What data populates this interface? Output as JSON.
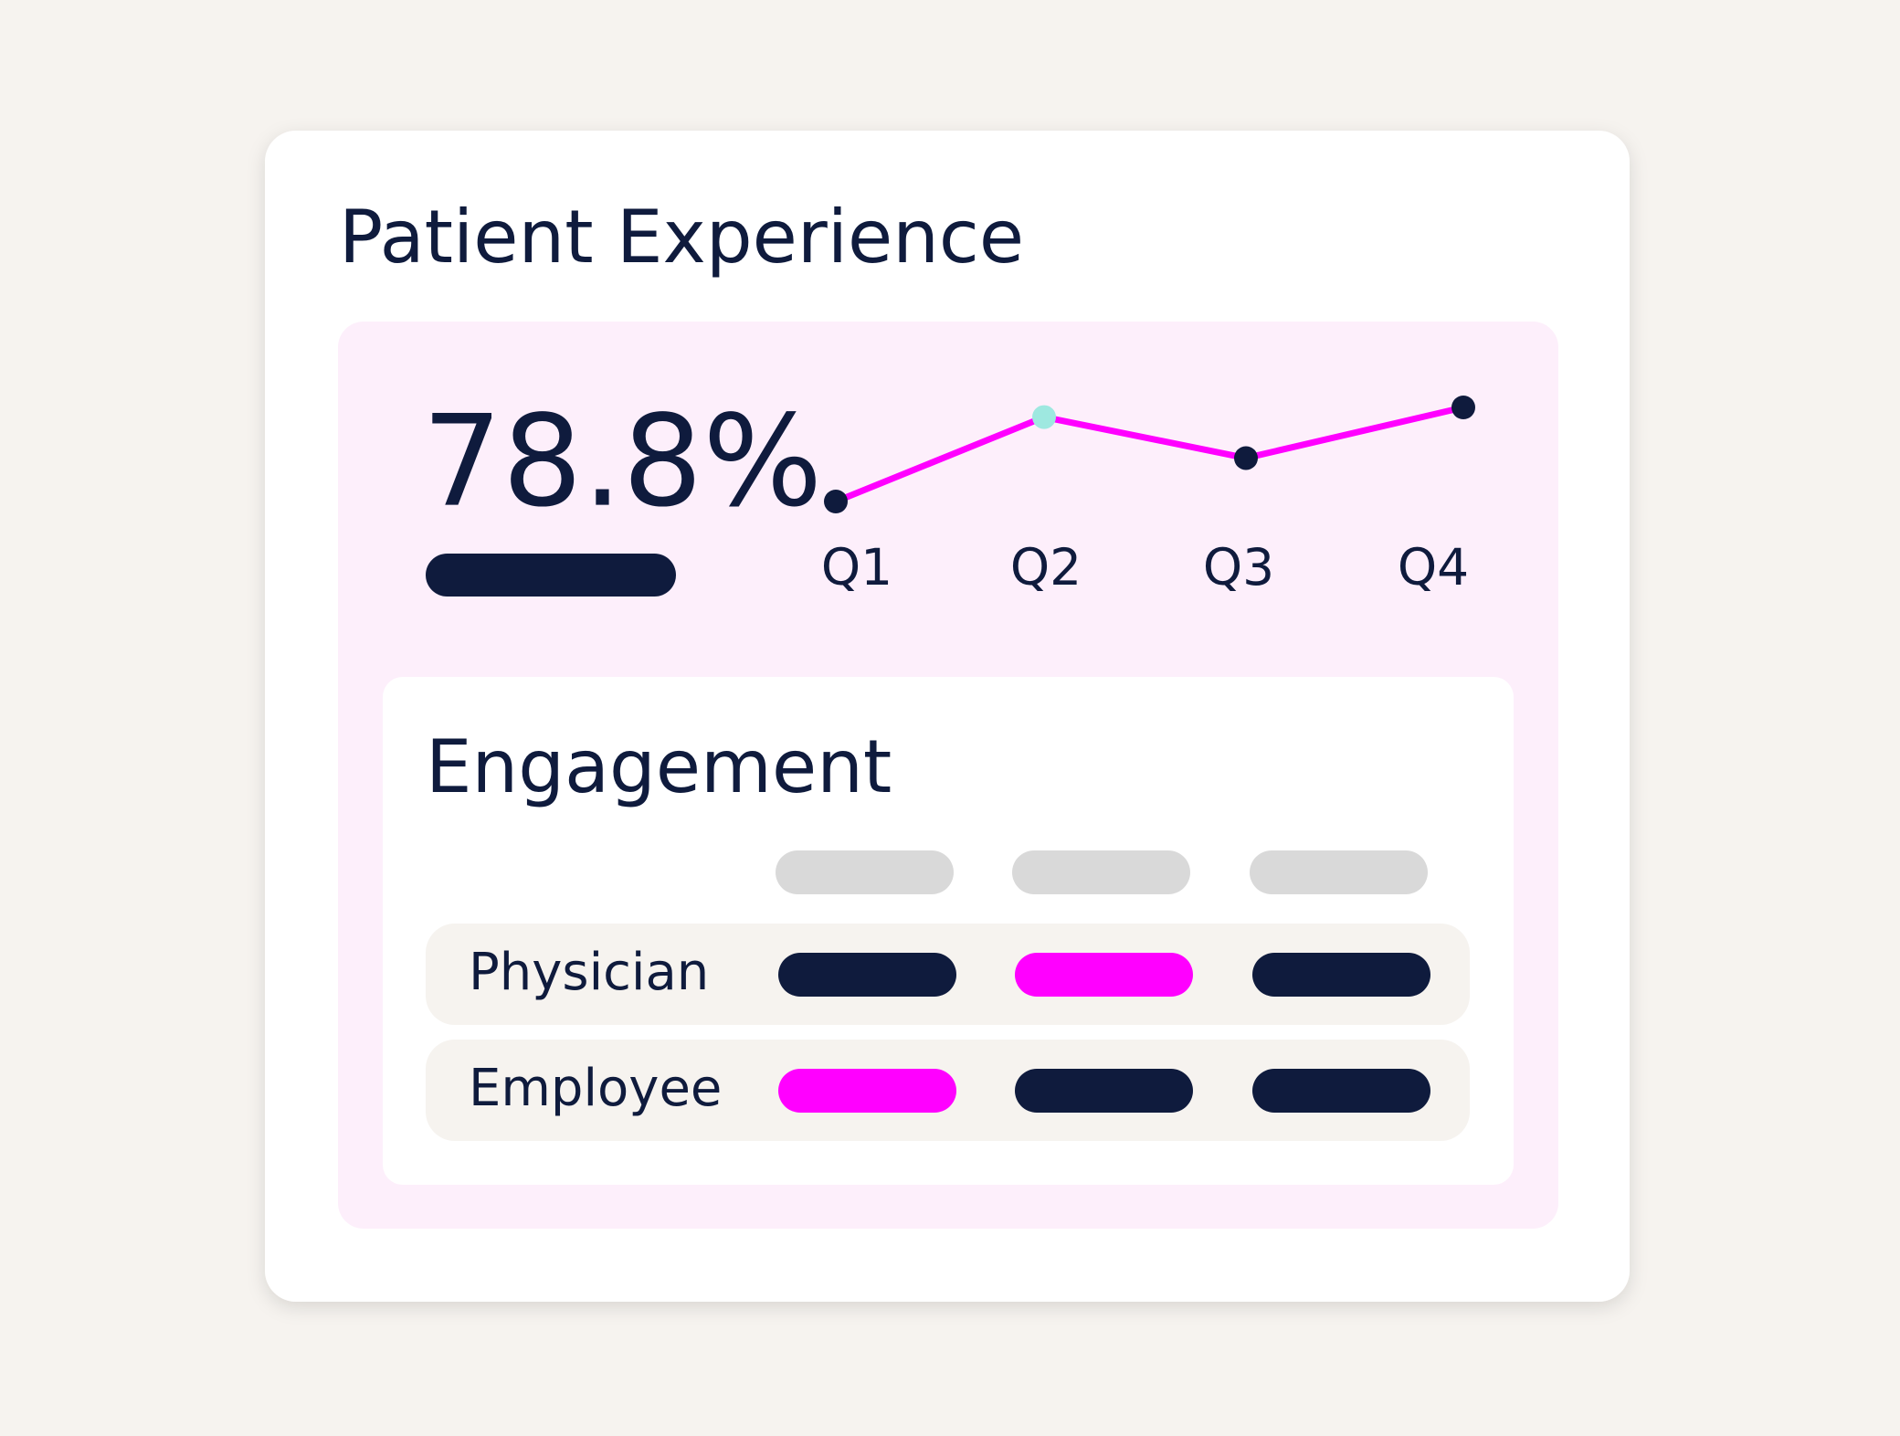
{
  "card": {
    "title": "Patient Experience"
  },
  "summary": {
    "value_label": "78.8%"
  },
  "chart_data": {
    "type": "line",
    "categories": [
      "Q1",
      "Q2",
      "Q3",
      "Q4"
    ],
    "values": [
      2,
      9,
      5.6,
      9.8
    ],
    "color": "#ff00ff",
    "point_colors": [
      "#0f1b3d",
      "#9ee8e0",
      "#0f1b3d",
      "#0f1b3d"
    ]
  },
  "engagement": {
    "title": "Engagement",
    "rows": [
      {
        "label": "Physician",
        "cells": [
          "#0f1b3d",
          "#ff00ff",
          "#0f1b3d"
        ]
      },
      {
        "label": "Employee",
        "cells": [
          "#ff00ff",
          "#0f1b3d",
          "#0f1b3d"
        ]
      }
    ]
  }
}
